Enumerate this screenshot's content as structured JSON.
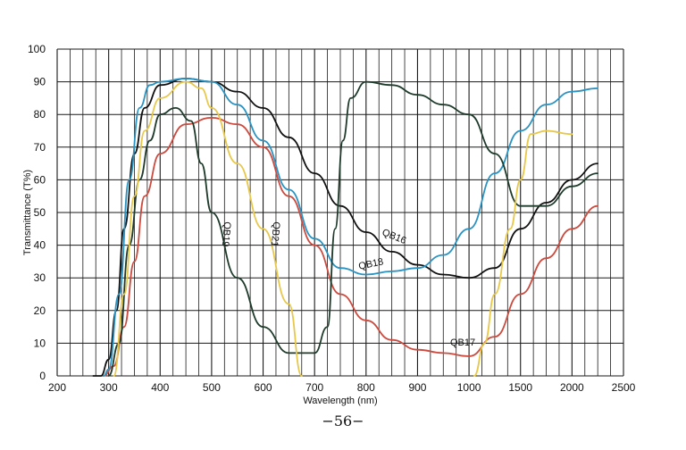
{
  "page": {
    "number": "−56−"
  },
  "chart_data": {
    "type": "line",
    "xlabel": "Wavelength (nm)",
    "ylabel": "Transmittance (T%)",
    "x_ticks": [
      "200",
      "300",
      "400",
      "500",
      "600",
      "700",
      "800",
      "900",
      "1000",
      "1500",
      "2000",
      "2500"
    ],
    "y_ticks": [
      "0",
      "10",
      "20",
      "30",
      "40",
      "50",
      "60",
      "70",
      "80",
      "90",
      "100"
    ],
    "ylim": [
      0,
      100
    ],
    "x_axis_note": "tick spacing 100 nm from 200 to 1000 nm, 500 nm from 1000 to 2500 nm",
    "grid": true,
    "series": [
      {
        "name": "QB16",
        "color": "#111111",
        "points": [
          [
            270,
            0
          ],
          [
            285,
            0
          ],
          [
            300,
            5
          ],
          [
            315,
            20
          ],
          [
            330,
            45
          ],
          [
            350,
            68
          ],
          [
            370,
            82
          ],
          [
            400,
            89
          ],
          [
            450,
            91
          ],
          [
            500,
            90
          ],
          [
            550,
            87
          ],
          [
            600,
            82
          ],
          [
            650,
            73
          ],
          [
            700,
            62
          ],
          [
            750,
            52
          ],
          [
            800,
            44
          ],
          [
            850,
            38
          ],
          [
            900,
            34
          ],
          [
            950,
            31
          ],
          [
            1000,
            30
          ],
          [
            1250,
            33
          ],
          [
            1500,
            45
          ],
          [
            1750,
            53
          ],
          [
            2000,
            60
          ],
          [
            2250,
            65
          ]
        ]
      },
      {
        "name": "QB17",
        "color": "#cc4a3e",
        "points": [
          [
            290,
            0
          ],
          [
            310,
            3
          ],
          [
            330,
            15
          ],
          [
            350,
            35
          ],
          [
            370,
            55
          ],
          [
            400,
            68
          ],
          [
            450,
            77
          ],
          [
            500,
            79
          ],
          [
            550,
            77
          ],
          [
            600,
            70
          ],
          [
            650,
            55
          ],
          [
            700,
            40
          ],
          [
            750,
            25
          ],
          [
            800,
            17
          ],
          [
            850,
            11
          ],
          [
            900,
            8
          ],
          [
            950,
            7
          ],
          [
            1000,
            6
          ],
          [
            1250,
            12
          ],
          [
            1500,
            25
          ],
          [
            1750,
            36
          ],
          [
            2000,
            45
          ],
          [
            2250,
            52
          ]
        ]
      },
      {
        "name": "QB18",
        "color": "#2a93c2",
        "points": [
          [
            290,
            0
          ],
          [
            300,
            2
          ],
          [
            320,
            25
          ],
          [
            340,
            60
          ],
          [
            360,
            82
          ],
          [
            380,
            89
          ],
          [
            400,
            90
          ],
          [
            450,
            91
          ],
          [
            500,
            90
          ],
          [
            550,
            83
          ],
          [
            600,
            72
          ],
          [
            650,
            57
          ],
          [
            700,
            42
          ],
          [
            750,
            33
          ],
          [
            800,
            31
          ],
          [
            850,
            32
          ],
          [
            900,
            33
          ],
          [
            950,
            37
          ],
          [
            1000,
            45
          ],
          [
            1250,
            62
          ],
          [
            1500,
            75
          ],
          [
            1750,
            83
          ],
          [
            2000,
            87
          ],
          [
            2250,
            88
          ]
        ]
      },
      {
        "name": "QB19",
        "color": "#1f3b2b",
        "points": [
          [
            300,
            0
          ],
          [
            320,
            10
          ],
          [
            340,
            40
          ],
          [
            360,
            60
          ],
          [
            380,
            72
          ],
          [
            400,
            80
          ],
          [
            430,
            82
          ],
          [
            460,
            78
          ],
          [
            480,
            65
          ],
          [
            500,
            50
          ],
          [
            550,
            30
          ],
          [
            600,
            15
          ],
          [
            650,
            7
          ],
          [
            700,
            7
          ],
          [
            725,
            15
          ],
          [
            740,
            45
          ],
          [
            755,
            72
          ],
          [
            770,
            85
          ],
          [
            800,
            90
          ],
          [
            850,
            89
          ],
          [
            900,
            86
          ],
          [
            950,
            83
          ],
          [
            1000,
            80
          ],
          [
            1250,
            68
          ],
          [
            1500,
            52
          ],
          [
            1750,
            52
          ],
          [
            2000,
            58
          ],
          [
            2250,
            62
          ]
        ]
      },
      {
        "name": "QB21",
        "color": "#e8c84a",
        "points": [
          [
            310,
            0
          ],
          [
            330,
            25
          ],
          [
            350,
            55
          ],
          [
            370,
            75
          ],
          [
            400,
            85
          ],
          [
            450,
            90
          ],
          [
            480,
            88
          ],
          [
            500,
            82
          ],
          [
            550,
            65
          ],
          [
            600,
            45
          ],
          [
            650,
            22
          ],
          [
            675,
            0
          ],
          [
            1000,
            null
          ],
          [
            1050,
            0
          ],
          [
            1150,
            10
          ],
          [
            1250,
            25
          ],
          [
            1400,
            45
          ],
          [
            1500,
            60
          ],
          [
            1600,
            74
          ],
          [
            1750,
            75
          ],
          [
            2000,
            74
          ]
        ]
      }
    ],
    "annotations": [
      {
        "text": "QB16",
        "series": "QB16"
      },
      {
        "text": "QB17",
        "series": "QB17"
      },
      {
        "text": "QB18",
        "series": "QB18"
      },
      {
        "text": "QB19",
        "series": "QB19"
      },
      {
        "text": "QB21",
        "series": "QB21"
      }
    ]
  }
}
